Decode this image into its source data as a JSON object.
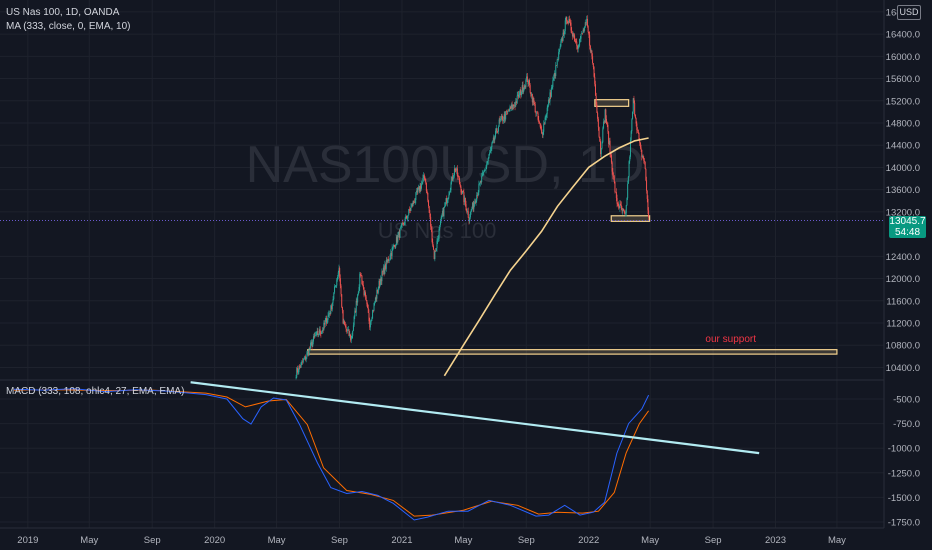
{
  "header": {
    "symbol_line": "US Nas 100, 1D, OANDA",
    "indicator_line": "MA (333, close, 0, EMA, 10)",
    "currency": "USD"
  },
  "watermark": {
    "symbol": "NAS100USD, 1D",
    "name": "US Nas 100"
  },
  "annotation": {
    "support_label": "our support"
  },
  "last_price": {
    "value": "13045.7",
    "countdown": "54:48"
  },
  "macd": {
    "label": "MACD (333, 108, ohlc4, 27, EMA, EMA)"
  },
  "colors": {
    "background": "#131722",
    "grid": "#1e222d",
    "up": "#26a69a",
    "down": "#ef5350",
    "ma": "#f5d38f",
    "macd": "#2962ff",
    "signal": "#ff6d00",
    "trendline": "#b2ebf2",
    "zone": "#f5d38f",
    "support_text": "#f23645",
    "price_tag": "#089981"
  },
  "chart_data": {
    "type": "candlestick",
    "price_axis": {
      "ticks": [
        "16800.0",
        "16400.0",
        "16000.0",
        "15600.0",
        "15200.0",
        "14800.0",
        "14400.0",
        "14000.0",
        "13600.0",
        "13200.0",
        "12400.0",
        "12000.0",
        "11600.0",
        "11200.0",
        "10800.0",
        "10400.0"
      ],
      "range": [
        10250,
        16900
      ]
    },
    "time_axis": {
      "ticks": [
        "2019",
        "May",
        "Sep",
        "2020",
        "May",
        "Sep",
        "2021",
        "May",
        "Sep",
        "2022",
        "May",
        "Sep",
        "2023",
        "May"
      ]
    },
    "price_path": [
      [
        "2020-06-08",
        10300
      ],
      [
        "2020-06-25",
        10550
      ],
      [
        "2020-07-15",
        10950
      ],
      [
        "2020-07-31",
        11100
      ],
      [
        "2020-08-15",
        11450
      ],
      [
        "2020-08-31",
        12200
      ],
      [
        "2020-09-08",
        11200
      ],
      [
        "2020-09-24",
        10900
      ],
      [
        "2020-10-12",
        12100
      ],
      [
        "2020-10-30",
        11200
      ],
      [
        "2020-11-20",
        12000
      ],
      [
        "2020-12-10",
        12450
      ],
      [
        "2020-12-31",
        12900
      ],
      [
        "2021-01-20",
        13300
      ],
      [
        "2021-02-15",
        13850
      ],
      [
        "2021-03-05",
        12400
      ],
      [
        "2021-03-20",
        13100
      ],
      [
        "2021-04-15",
        14000
      ],
      [
        "2021-05-12",
        13100
      ],
      [
        "2021-06-10",
        13900
      ],
      [
        "2021-07-10",
        14800
      ],
      [
        "2021-08-10",
        15150
      ],
      [
        "2021-09-03",
        15600
      ],
      [
        "2021-10-01",
        14600
      ],
      [
        "2021-10-20",
        15400
      ],
      [
        "2021-11-19",
        16700
      ],
      [
        "2021-12-10",
        16200
      ],
      [
        "2021-12-28",
        16600
      ],
      [
        "2022-01-10",
        15800
      ],
      [
        "2022-01-24",
        14300
      ],
      [
        "2022-02-02",
        15000
      ],
      [
        "2022-02-24",
        13400
      ],
      [
        "2022-03-14",
        13100
      ],
      [
        "2022-03-29",
        15200
      ],
      [
        "2022-04-12",
        14300
      ],
      [
        "2022-04-20",
        14100
      ],
      [
        "2022-04-28",
        13100
      ]
    ],
    "moving_average": {
      "name": "MA (333, close, 0, EMA, 10)",
      "points": [
        [
          "2021-03-25",
          10250
        ],
        [
          "2021-05-01",
          10800
        ],
        [
          "2021-06-01",
          11250
        ],
        [
          "2021-07-01",
          11700
        ],
        [
          "2021-08-01",
          12150
        ],
        [
          "2021-09-01",
          12500
        ],
        [
          "2021-10-01",
          12850
        ],
        [
          "2021-11-01",
          13300
        ],
        [
          "2021-12-01",
          13650
        ],
        [
          "2022-01-01",
          14000
        ],
        [
          "2022-02-01",
          14200
        ],
        [
          "2022-03-01",
          14350
        ],
        [
          "2022-04-01",
          14480
        ],
        [
          "2022-04-28",
          14530
        ]
      ]
    },
    "zones": [
      {
        "start": "2022-01-13",
        "end": "2022-03-20",
        "low": 15100,
        "high": 15220
      },
      {
        "start": "2022-02-14",
        "end": "2022-04-30",
        "low": 13030,
        "high": 13130
      },
      {
        "start": "2020-07-01",
        "end": "2023-05-01",
        "low": 10640,
        "high": 10720
      }
    ],
    "last_price_level": 13045.7,
    "macd_panel": {
      "ticks": [
        "-500.0",
        "-750.0",
        "-1000.0",
        "-1250.0",
        "-1500.0",
        "-1750.0"
      ],
      "range": [
        -1850,
        -380
      ],
      "macd_line": [
        [
          "2018-12-05",
          -400
        ],
        [
          "2019-02-01",
          -410
        ],
        [
          "2019-04-01",
          -395
        ],
        [
          "2019-06-01",
          -425
        ],
        [
          "2019-08-01",
          -405
        ],
        [
          "2019-10-01",
          -420
        ],
        [
          "2019-12-15",
          -455
        ],
        [
          "2020-01-25",
          -500
        ],
        [
          "2020-02-25",
          -700
        ],
        [
          "2020-03-12",
          -755
        ],
        [
          "2020-04-01",
          -580
        ],
        [
          "2020-04-25",
          -490
        ],
        [
          "2020-05-20",
          -510
        ],
        [
          "2020-06-15",
          -760
        ],
        [
          "2020-07-20",
          -1150
        ],
        [
          "2020-08-15",
          -1400
        ],
        [
          "2020-09-15",
          -1460
        ],
        [
          "2020-10-15",
          -1440
        ],
        [
          "2020-11-15",
          -1480
        ],
        [
          "2020-12-15",
          -1560
        ],
        [
          "2021-01-25",
          -1730
        ],
        [
          "2021-02-20",
          -1700
        ],
        [
          "2021-04-01",
          -1640
        ],
        [
          "2021-05-10",
          -1640
        ],
        [
          "2021-06-20",
          -1530
        ],
        [
          "2021-08-01",
          -1580
        ],
        [
          "2021-09-20",
          -1690
        ],
        [
          "2021-10-15",
          -1680
        ],
        [
          "2021-11-15",
          -1580
        ],
        [
          "2021-12-15",
          -1680
        ],
        [
          "2022-01-10",
          -1650
        ],
        [
          "2022-02-01",
          -1550
        ],
        [
          "2022-02-25",
          -1050
        ],
        [
          "2022-03-20",
          -750
        ],
        [
          "2022-04-15",
          -600
        ],
        [
          "2022-04-28",
          -460
        ]
      ],
      "signal_line": [
        [
          "2018-12-05",
          -410
        ],
        [
          "2019-03-01",
          -405
        ],
        [
          "2019-06-01",
          -415
        ],
        [
          "2019-09-01",
          -410
        ],
        [
          "2019-12-15",
          -440
        ],
        [
          "2020-01-25",
          -480
        ],
        [
          "2020-03-01",
          -580
        ],
        [
          "2020-04-15",
          -520
        ],
        [
          "2020-05-20",
          -505
        ],
        [
          "2020-06-30",
          -760
        ],
        [
          "2020-08-01",
          -1200
        ],
        [
          "2020-09-15",
          -1430
        ],
        [
          "2020-11-01",
          -1470
        ],
        [
          "2020-12-15",
          -1530
        ],
        [
          "2021-01-25",
          -1690
        ],
        [
          "2021-03-01",
          -1680
        ],
        [
          "2021-05-01",
          -1630
        ],
        [
          "2021-06-25",
          -1540
        ],
        [
          "2021-08-15",
          -1580
        ],
        [
          "2021-09-25",
          -1670
        ],
        [
          "2021-11-01",
          -1650
        ],
        [
          "2021-12-20",
          -1660
        ],
        [
          "2022-01-20",
          -1640
        ],
        [
          "2022-02-20",
          -1450
        ],
        [
          "2022-03-15",
          -1050
        ],
        [
          "2022-04-10",
          -750
        ],
        [
          "2022-04-28",
          -620
        ]
      ],
      "trendline": [
        [
          "2019-11-15",
          -330
        ],
        [
          "2022-11-30",
          -1050
        ]
      ]
    }
  }
}
